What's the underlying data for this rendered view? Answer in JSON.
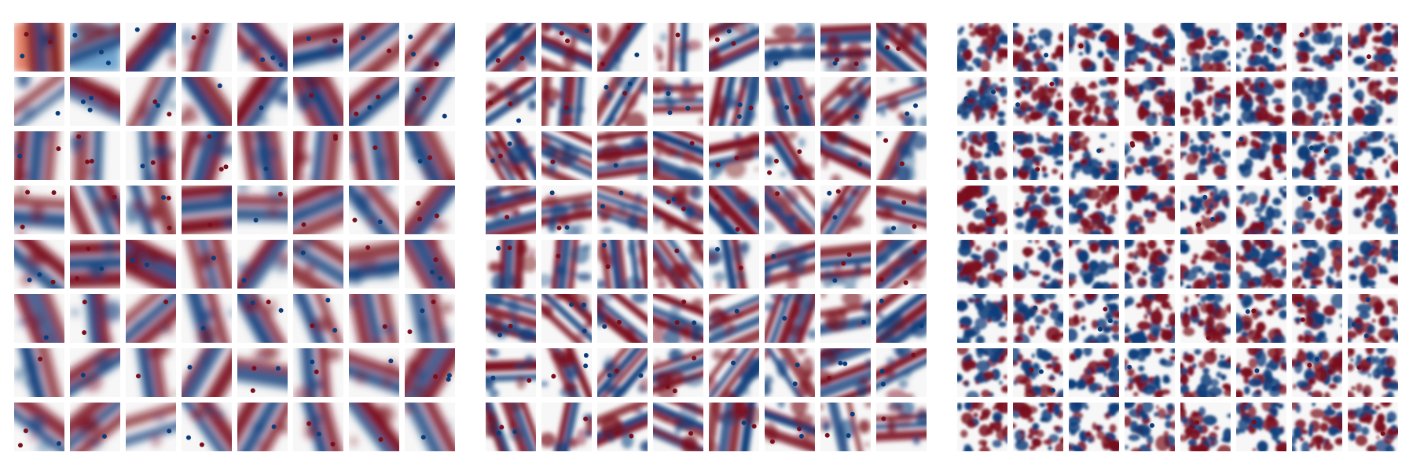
{
  "figure": {
    "colormap": {
      "negative": "#0b3d7a",
      "mid_negative": "#6fa4cf",
      "zero": "#f7f7f7",
      "mid_positive": "#e8836b",
      "positive": "#7a0e1c"
    },
    "panels": [
      {
        "rows": 8,
        "cols": 8,
        "style": "smooth"
      },
      {
        "rows": 8,
        "cols": 8,
        "style": "medium"
      },
      {
        "rows": 8,
        "cols": 8,
        "style": "noisy"
      }
    ]
  }
}
